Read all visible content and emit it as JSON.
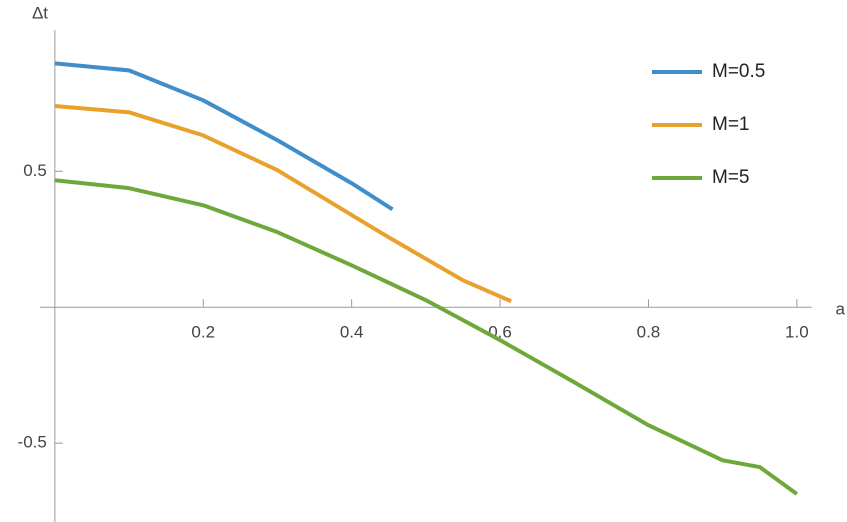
{
  "chart_data": {
    "type": "line",
    "x_label": "a",
    "y_label": "Δt",
    "xlim": [
      -0.02,
      1.02
    ],
    "ylim": [
      -0.79,
      1.13
    ],
    "xticks": [
      0.2,
      0.4,
      0.6,
      0.8,
      {
        "value": 1,
        "label": "1.0"
      }
    ],
    "yticks": [
      -0.5,
      0.5
    ],
    "legend": "upper right",
    "series": [
      {
        "name": "M=0.5",
        "color": "#3f8ec9",
        "x": [
          0,
          0.1,
          0.2,
          0.3,
          0.4,
          0.455
        ],
        "values": [
          0.897,
          0.871,
          0.761,
          0.614,
          0.456,
          0.36
        ]
      },
      {
        "name": "M=1",
        "color": "#e9a12b",
        "x": [
          0,
          0.1,
          0.2,
          0.3,
          0.45,
          0.55,
          0.615
        ],
        "values": [
          0.74,
          0.717,
          0.632,
          0.504,
          0.257,
          0.099,
          0.022
        ]
      },
      {
        "name": "M=5",
        "color": "#6ea83a",
        "x": [
          0,
          0.1,
          0.2,
          0.3,
          0.4,
          0.5,
          0.6,
          0.7,
          0.8,
          0.9,
          0.95,
          1.0
        ],
        "values": [
          0.467,
          0.438,
          0.375,
          0.276,
          0.154,
          0.026,
          -0.121,
          -0.276,
          -0.434,
          -0.563,
          -0.588,
          -0.687
        ]
      }
    ]
  }
}
